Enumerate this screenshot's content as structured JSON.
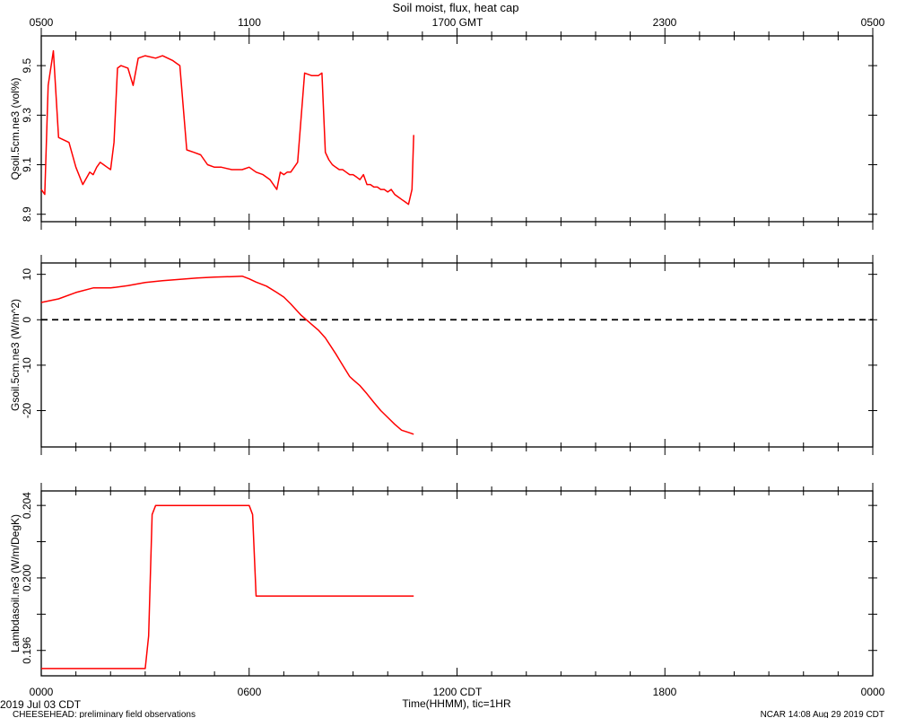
{
  "page": {
    "title": "Soil moist, flux, heat cap",
    "top_axis_ticks": [
      "0500",
      "1100",
      "1700 GMT",
      "2300",
      "0500"
    ],
    "bottom_axis_ticks": [
      "0000",
      "0600",
      "1200 CDT",
      "1800",
      "0000"
    ],
    "bottom_axis_label": "Time(HHMM), tic=1HR",
    "date_label": "2019 Jul 03 CDT",
    "footer_left": "CHEESEHEAD: preliminary field observations",
    "footer_right": "NCAR 14:08 Aug 29 2019 CDT"
  },
  "chart_data": [
    {
      "type": "line",
      "ylabel": "Qsoil.5cm.ne3 (vol%)",
      "ylim": [
        8.87,
        9.62
      ],
      "yticks": [
        8.9,
        9.1,
        9.3,
        9.5
      ],
      "ytick_labels": [
        "8.9",
        "9.1",
        "9.3",
        "9.5"
      ],
      "xlim": [
        0,
        24
      ],
      "line_color": "#ff0000",
      "series": [
        {
          "x": [
            0.0,
            0.1,
            0.2,
            0.35,
            0.5,
            0.8,
            1.0,
            1.2,
            1.4,
            1.5,
            1.6,
            1.7,
            1.8,
            1.9,
            2.0,
            2.1,
            2.2,
            2.3,
            2.5,
            2.65,
            2.8,
            3.0,
            3.3,
            3.5,
            3.8,
            3.9,
            4.0,
            4.2,
            4.4,
            4.6,
            4.8,
            5.0,
            5.2,
            5.5,
            5.8,
            6.0,
            6.2,
            6.4,
            6.6,
            6.8,
            6.9,
            7.0,
            7.1,
            7.2,
            7.4,
            7.6,
            7.8,
            8.0,
            8.1,
            8.2,
            8.3,
            8.4,
            8.5,
            8.6,
            8.7,
            8.8,
            8.9,
            9.0,
            9.1,
            9.2,
            9.3,
            9.4,
            9.5,
            9.6,
            9.7,
            9.8,
            9.9,
            10.0,
            10.1,
            10.2,
            10.3,
            10.4,
            10.5,
            10.6,
            10.7,
            10.75
          ],
          "y": [
            9.0,
            8.98,
            9.42,
            9.56,
            9.21,
            9.19,
            9.09,
            9.02,
            9.07,
            9.06,
            9.09,
            9.11,
            9.1,
            9.09,
            9.08,
            9.19,
            9.49,
            9.5,
            9.49,
            9.42,
            9.53,
            9.54,
            9.53,
            9.54,
            9.52,
            9.51,
            9.5,
            9.16,
            9.15,
            9.14,
            9.1,
            9.09,
            9.09,
            9.08,
            9.08,
            9.09,
            9.07,
            9.06,
            9.04,
            9.0,
            9.07,
            9.06,
            9.07,
            9.07,
            9.11,
            9.47,
            9.46,
            9.46,
            9.47,
            9.15,
            9.12,
            9.1,
            9.09,
            9.08,
            9.08,
            9.07,
            9.06,
            9.06,
            9.05,
            9.04,
            9.06,
            9.02,
            9.02,
            9.01,
            9.01,
            9.0,
            9.0,
            8.99,
            9.0,
            8.98,
            8.97,
            8.96,
            8.95,
            8.94,
            9.0,
            9.22
          ]
        }
      ]
    },
    {
      "type": "line",
      "ylabel": "Gsoil.5cm.ne3 (W/m^2)",
      "ylim": [
        -28,
        12.5
      ],
      "yticks": [
        -20,
        -10,
        0,
        10
      ],
      "ytick_labels": [
        "-20",
        "-10",
        "0",
        "10"
      ],
      "reference_line": 0,
      "xlim": [
        0,
        24
      ],
      "line_color": "#ff0000",
      "series": [
        {
          "x": [
            0.0,
            0.5,
            1.0,
            1.5,
            2.0,
            2.5,
            3.0,
            3.5,
            4.0,
            4.5,
            5.0,
            5.5,
            5.8,
            6.0,
            6.2,
            6.5,
            6.8,
            7.0,
            7.2,
            7.5,
            7.8,
            8.0,
            8.2,
            8.5,
            8.7,
            8.9,
            9.0,
            9.2,
            9.4,
            9.6,
            9.8,
            10.0,
            10.2,
            10.4,
            10.6,
            10.75
          ],
          "y": [
            3.8,
            4.6,
            6.0,
            7.0,
            7.0,
            7.5,
            8.2,
            8.6,
            8.9,
            9.2,
            9.4,
            9.5,
            9.6,
            9.0,
            8.3,
            7.4,
            6.0,
            5.0,
            3.5,
            1.0,
            -1.0,
            -2.3,
            -4.0,
            -7.5,
            -10.0,
            -12.5,
            -13.2,
            -14.5,
            -16.3,
            -18.2,
            -20.0,
            -21.5,
            -23.0,
            -24.3,
            -24.8,
            -25.2
          ]
        }
      ]
    },
    {
      "type": "line",
      "ylabel": "Lambdasoil.ne3 (W/m/DegK)",
      "ylim": [
        0.1946,
        0.2048
      ],
      "yticks": [
        0.196,
        0.198,
        0.2,
        0.202,
        0.204
      ],
      "ytick_labels": [
        "0.196",
        "",
        "0.200",
        "",
        "0.204"
      ],
      "xlim": [
        0,
        24
      ],
      "line_color": "#ff0000",
      "series": [
        {
          "x": [
            0.0,
            3.0,
            3.1,
            3.2,
            3.3,
            5.8,
            6.0,
            6.1,
            6.2,
            10.75
          ],
          "y": [
            0.195,
            0.195,
            0.1968,
            0.2035,
            0.204,
            0.204,
            0.204,
            0.2035,
            0.199,
            0.199
          ]
        }
      ]
    }
  ]
}
